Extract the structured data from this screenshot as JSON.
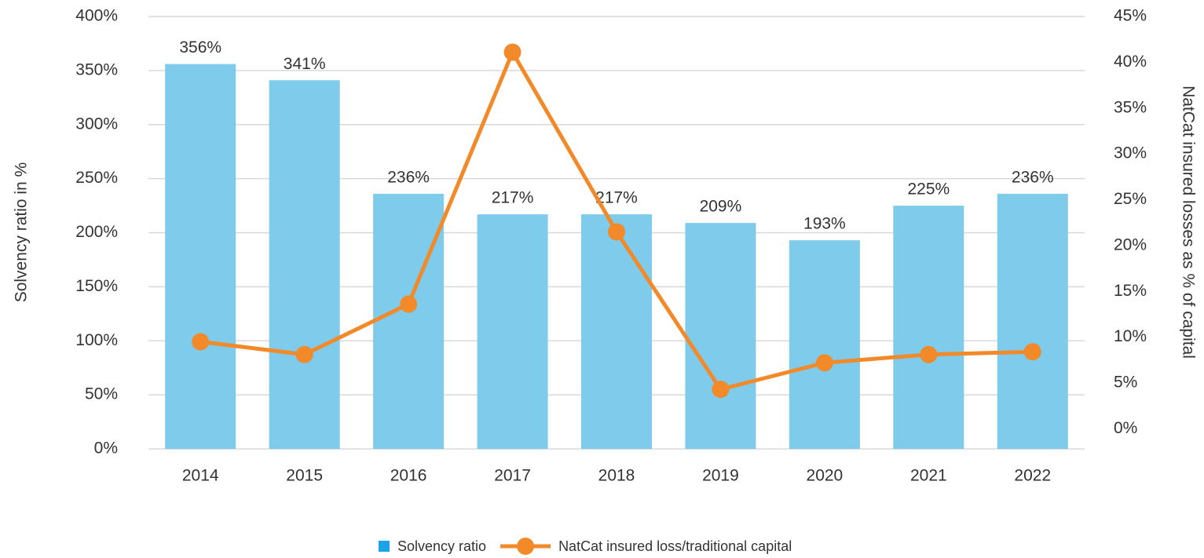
{
  "chart_data": {
    "type": "bar",
    "categories": [
      "2014",
      "2015",
      "2016",
      "2017",
      "2018",
      "2019",
      "2020",
      "2021",
      "2022"
    ],
    "series": [
      {
        "name": "Solvency ratio",
        "type": "bar",
        "color": "#7ecbec",
        "values": [
          356,
          341,
          236,
          217,
          217,
          209,
          193,
          225,
          236
        ],
        "value_labels": [
          "356%",
          "341%",
          "236%",
          "217%",
          "217%",
          "209%",
          "193%",
          "225%",
          "236%"
        ]
      },
      {
        "name": "NatCat insured loss/traditional capital",
        "type": "line",
        "axis": "y2",
        "color": "#f28a2a",
        "values": [
          9.5,
          8.1,
          13.6,
          41.1,
          21.5,
          4.3,
          7.2,
          8.1,
          8.4
        ]
      }
    ],
    "y_label": "Solvency ratio in %",
    "y2_label": "NatCat insured losses as % of capital",
    "ylim": [
      0,
      400
    ],
    "yticks": [
      {
        "value": 0,
        "label": "0%"
      },
      {
        "value": 50,
        "label": "50%"
      },
      {
        "value": 100,
        "label": "100%"
      },
      {
        "value": 150,
        "label": "150%"
      },
      {
        "value": 200,
        "label": "200%"
      },
      {
        "value": 250,
        "label": "250%"
      },
      {
        "value": 300,
        "label": "300%"
      },
      {
        "value": 350,
        "label": "350%"
      },
      {
        "value": 400,
        "label": "400%"
      }
    ],
    "y2lim": [
      -2.2,
      45
    ],
    "y2ticks": [
      {
        "value": 0,
        "label": "0%"
      },
      {
        "value": 5,
        "label": "5%"
      },
      {
        "value": 10,
        "label": "10%"
      },
      {
        "value": 15,
        "label": "15%"
      },
      {
        "value": 20,
        "label": "20%"
      },
      {
        "value": 25,
        "label": "25%"
      },
      {
        "value": 30,
        "label": "30%"
      },
      {
        "value": 35,
        "label": "35%"
      },
      {
        "value": 40,
        "label": "40%"
      },
      {
        "value": 45,
        "label": "45%"
      }
    ],
    "grid": true,
    "legend": "bottom"
  }
}
